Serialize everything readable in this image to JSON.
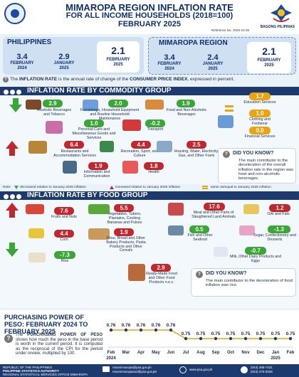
{
  "header": {
    "title1": "MIMAROPA REGION INFLATION RATE",
    "title2": "FOR ALL INCOME HOUSEHOLDS (2018=100)",
    "title3": "FEBRUARY 2025",
    "reference": "Reference No. 2025-10-35",
    "brand": "BAGONG PILIPINAS"
  },
  "philippines": {
    "heading": "PHILIPPINES",
    "items": [
      {
        "value": "3.4",
        "label1": "FEBRUARY",
        "label2": "2024"
      },
      {
        "value": "2.9",
        "label1": "JANUARY",
        "label2": "2025"
      },
      {
        "value": "2.1",
        "label1": "FEBRUARY",
        "label2": "2025"
      }
    ]
  },
  "mimaropa": {
    "heading": "MIMAROPA REGION",
    "items": [
      {
        "value": "3.4",
        "label1": "FEBRUARY",
        "label2": "2024"
      },
      {
        "value": "2.4",
        "label1": "JANUARY",
        "label2": "2025"
      },
      {
        "value": "2.1",
        "label1": "FEBRUARY",
        "label2": "2025"
      }
    ]
  },
  "definition": {
    "prefix": "The",
    "bold1": "INFLATION RATE",
    "middle": "is the annual rate of change of the",
    "bold2": "CONSUMER PRICE INDEX",
    "suffix": ", expressed in percent."
  },
  "commodity": {
    "heading": "INFLATION RATE BY COMMODITY GROUP",
    "items": [
      {
        "value": "2.9",
        "label": "Alcoholic Beverages and Tobacco",
        "color": "#3aa635"
      },
      {
        "value": "2.0",
        "label": "Furnishings, Household Equipment and Routine Household Maintenance",
        "color": "#3aa635"
      },
      {
        "value": "1.9",
        "label": "Food and Non-Alcoholic Beverages",
        "color": "#3aa635"
      },
      {
        "value": "1.0",
        "label": "Personal Care and Miscellaneous Goods and Services",
        "color": "#3aa635"
      },
      {
        "value": "-0.2",
        "label": "Transport",
        "color": "#3aa635"
      },
      {
        "value": "6.4",
        "label": "Restaurants and Accommodation Services",
        "color": "#c1272d"
      },
      {
        "value": "4.4",
        "label": "Recreation, Sport, and Culture",
        "color": "#c1272d"
      },
      {
        "value": "2.5",
        "label": "Housing, Water, Electricity, Gas, and Other Fuels",
        "color": "#c1272d"
      },
      {
        "value": "1.9",
        "label": "Information and Communication",
        "color": "#c1272d"
      },
      {
        "value": "1.8",
        "label": "Health",
        "color": "#c1272d"
      },
      {
        "value": "1.7",
        "label": "Education Services",
        "color": "#e8a413"
      },
      {
        "value": "1.0",
        "label": "Clothing and Footwear",
        "color": "#e8a413"
      },
      {
        "value": "0.0",
        "label": "Financial Services",
        "color": "#e8a413"
      }
    ],
    "dyk_title": "DID YOU KNOW?",
    "dyk_text": "The main contributor to the deceleration of the overall inflation rate in the region was food and non-alcoholic beverages."
  },
  "legend": {
    "note": "Note:",
    "down": "decreased relative to January 2025 inflation",
    "up": "increased relative to January 2025 inflation",
    "same": "same as/equal to January 2025 inflation"
  },
  "food": {
    "heading": "INFLATION RATE BY FOOD GROUP",
    "items": [
      {
        "value": "7.6",
        "label": "Fruits and Nuts"
      },
      {
        "value": "5.5",
        "label": "Vegetables, Tubers, Plantains, Cooking Bananas and Pulses"
      },
      {
        "value": "4.4",
        "label": "Corn"
      },
      {
        "value": "1.9",
        "label": "Flour, Bread and Other Bakery Products, Pasta Products and Other Cereals"
      },
      {
        "value": "-7.3",
        "label": "Rice"
      },
      {
        "value": "2.9",
        "label": "Ready-Made Food and Other Food Products n.e.c."
      },
      {
        "value": "17.6",
        "label": "Meat and Other Parts of Slaughtered Land Animals"
      },
      {
        "value": "1.2",
        "label": "Oils and Fats"
      },
      {
        "value": "0.5",
        "label": "Fish and Other Seafood"
      },
      {
        "value": "-1.3",
        "label": "Sugar, Confectionery and Desserts"
      },
      {
        "value": "-0.7",
        "label": "Milk, Other Dairy Products and Eggs"
      }
    ],
    "dyk_title": "DID YOU KNOW?",
    "dyk_text": "The main contributor to the deceleration of food inflation was rice."
  },
  "purchasing": {
    "heading1": "PURCHASING POWER OF",
    "heading2": "PESO: FEBRUARY 2024 TO",
    "heading3": "FEBRUARY 2025",
    "desc_prefix": "The",
    "desc_bold": "PURCHASING POWER OF PESO",
    "desc_rest": "shows how much the peso in the base period is worth in the current period. It is computed as the reciprocal of the CPI for the period under review, multiplied by 100."
  },
  "chart_data": {
    "type": "line",
    "categories": [
      "Feb 2024",
      "Mar",
      "Apr",
      "May",
      "Jun",
      "Jul",
      "Aug",
      "Sep",
      "Oct",
      "Nov",
      "Dec",
      "Jan 2025",
      "Feb"
    ],
    "tick_labels": [
      "Feb",
      "Mar",
      "Apr",
      "May",
      "Jun",
      "Jul",
      "Aug",
      "Sep",
      "Oct",
      "Nov",
      "Dec",
      "Jan",
      "Feb"
    ],
    "tick_sub": [
      "2024",
      "",
      "",
      "",
      "",
      "",
      "",
      "",
      "",
      "",
      "",
      "2025",
      ""
    ],
    "values": [
      0.76,
      0.76,
      0.76,
      0.76,
      0.76,
      0.75,
      0.75,
      0.75,
      0.75,
      0.75,
      0.75,
      0.75,
      0.75
    ],
    "ylim": [
      0.745,
      0.765
    ],
    "colors": {
      "line": "#e8a413",
      "marker": "#1c3a6e"
    }
  },
  "footer": {
    "l1": "REPUBLIC OF THE PHILIPPINES",
    "l2": "PHILIPPINE STATISTICS AUTHORITY",
    "l3": "REGIONAL STATISTICAL SERVICES OFFICE MIMAROPA",
    "e1": "rssomimaropa@psa.gov.ph",
    "e2": "rssomimaropasod@psa.gov.ph",
    "web": "www.psa.gov.ph",
    "p1": "(043) 288-7431",
    "p2": "(043) 470-0328"
  }
}
